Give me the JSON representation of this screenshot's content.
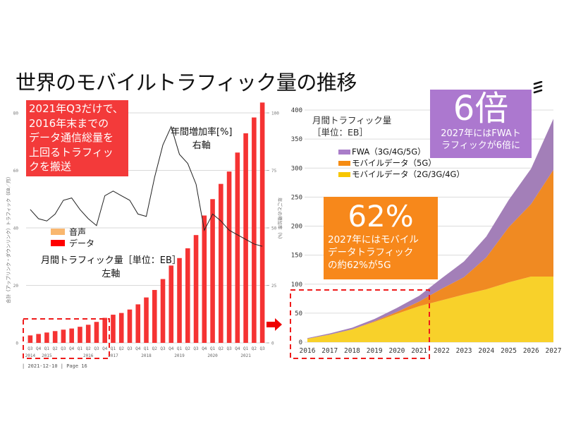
{
  "title": "世界のモバイルトラフィック量の推移",
  "footer": "| 2021-12-10 | Page 16",
  "callouts": {
    "red": [
      "2021年Q3だけで、",
      "2016年末までの",
      "データ通信総量を",
      "上回るトラフィッ",
      "クを搬送"
    ],
    "purple": {
      "big": "6倍",
      "lines": [
        "2027年にはFWAト",
        "ラフィックが6倍に"
      ]
    },
    "orange": {
      "big": "62%",
      "lines": [
        "2027年にはモバイル",
        "データトラフィック",
        "の約62%が5G"
      ]
    }
  },
  "left_annotations": {
    "growth_label": "年間増加率[%]",
    "growth_axis": "右軸",
    "volume_label": "月間トラフィック量［単位：EB］",
    "volume_axis": "左軸"
  },
  "left_legend": [
    {
      "label": "音声",
      "color": "#f9b76e"
    },
    {
      "label": "データ",
      "color": "#ff0000"
    }
  ],
  "right_title": [
    "月間トラフィック量",
    "［単位：EB］"
  ],
  "right_legend": [
    {
      "label": "FWA（3G/4G/5G）",
      "color": "#a97dc9"
    },
    {
      "label": "モバイルデータ（5G）",
      "color": "#f58b12"
    },
    {
      "label": "モバイルデータ（2G/3G/4G）",
      "color": "#f7c600"
    }
  ],
  "chart_data": [
    {
      "type": "bar",
      "title": "",
      "ylabel": "合計（アップリンク・ダウンリンク）トラフィック（EB／月）",
      "y2label": "年ごとの増加率（%）",
      "ylim": [
        0,
        80
      ],
      "y2lim": [
        0,
        100
      ],
      "yticks": [
        0,
        20,
        40,
        60,
        80
      ],
      "y2ticks": [
        0,
        25,
        50,
        75,
        100
      ],
      "grid": true,
      "quarters": [
        "Q3",
        "Q4",
        "Q1",
        "Q2",
        "Q3",
        "Q4",
        "Q1",
        "Q2",
        "Q3",
        "Q4",
        "Q1",
        "Q2",
        "Q3",
        "Q4",
        "Q1",
        "Q2",
        "Q3",
        "Q4",
        "Q1",
        "Q2",
        "Q3",
        "Q4",
        "Q1",
        "Q2",
        "Q3",
        "Q4",
        "Q1",
        "Q2",
        "Q3"
      ],
      "years": [
        {
          "label": "2014",
          "start": 0,
          "end": 0
        },
        {
          "label": "2015",
          "start": 1,
          "end": 2
        },
        {
          "label": "2016",
          "start": 3,
          "end": 9
        },
        {
          "label": "2017",
          "start": 10,
          "end": 10
        },
        {
          "label": "2018",
          "start": 11,
          "end": 17
        },
        {
          "label": "2019",
          "start": 18,
          "end": 20
        },
        {
          "label": "2020",
          "start": 21,
          "end": 25
        },
        {
          "label": "2021",
          "start": 26,
          "end": 28
        }
      ],
      "year_labels": [
        {
          "label": "2014",
          "at": 0
        },
        {
          "label": "2015",
          "at": 2
        },
        {
          "label": "2016",
          "at": 7
        },
        {
          "label": "2017",
          "at": 10
        },
        {
          "label": "2018",
          "at": 14
        },
        {
          "label": "2019",
          "at": 18
        },
        {
          "label": "2020",
          "at": 22
        },
        {
          "label": "2021",
          "at": 26
        }
      ],
      "series": [
        {
          "name": "データ",
          "kind": "bar",
          "axis": "left",
          "values": [
            2.6,
            3.1,
            3.6,
            4.1,
            4.6,
            5.0,
            5.6,
            6.3,
            7.3,
            8.7,
            9.8,
            10.4,
            11.6,
            13.4,
            15.8,
            18.4,
            22.2,
            26.9,
            29.5,
            32.9,
            37.5,
            44.3,
            50.0,
            55.3,
            59.6,
            66.2,
            72.9,
            78.4,
            83.6
          ]
        },
        {
          "name": "年間増加率",
          "kind": "line",
          "axis": "right",
          "values": [
            58,
            54,
            53,
            56,
            62,
            63,
            58,
            54,
            51,
            64,
            66,
            64,
            62,
            56,
            55,
            72,
            86,
            94,
            82,
            78,
            69,
            49,
            56,
            53,
            49,
            47,
            45,
            43,
            42
          ]
        }
      ]
    },
    {
      "type": "area",
      "title": "月間トラフィック量［単位：EB］",
      "ylim": [
        0,
        400
      ],
      "yticks": [
        0,
        50,
        100,
        150,
        200,
        250,
        300,
        350,
        400
      ],
      "grid": true,
      "x": [
        "2016",
        "2017",
        "2018",
        "2019",
        "2020",
        "2021",
        "2022",
        "2023",
        "2024",
        "2025",
        "2026",
        "2027"
      ],
      "stacked": true,
      "series": [
        {
          "name": "モバイルデータ（2G/3G/4G）",
          "values": [
            6,
            13,
            22,
            35,
            49,
            62,
            72,
            82,
            91,
            103,
            113,
            113
          ]
        },
        {
          "name": "モバイルデータ（5G）",
          "values": [
            0,
            0,
            0,
            1,
            3,
            8,
            20,
            30,
            55,
            95,
            125,
            184
          ]
        },
        {
          "name": "FWA（3G/4G/5G）",
          "values": [
            1,
            2,
            3,
            4,
            7,
            10,
            18,
            27,
            36,
            47,
            61,
            88
          ]
        }
      ]
    }
  ]
}
